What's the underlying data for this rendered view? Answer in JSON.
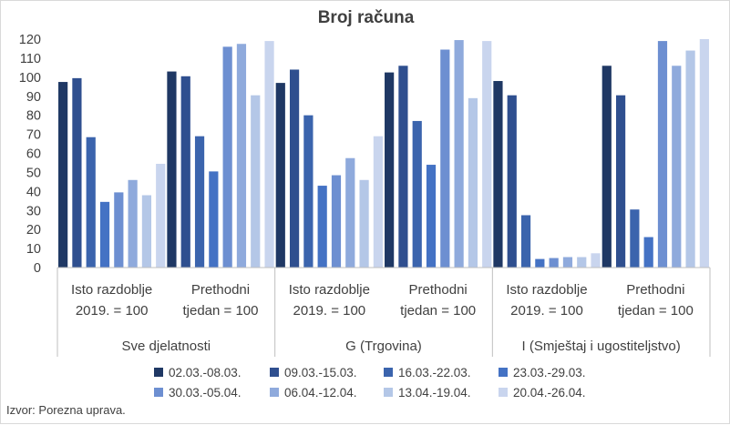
{
  "chart_data": {
    "type": "bar",
    "title": "Broj računa",
    "ylim": [
      0,
      120
    ],
    "yticks": [
      0,
      10,
      20,
      30,
      40,
      50,
      60,
      70,
      80,
      90,
      100,
      110,
      120
    ],
    "grid": false,
    "legend_position": "bottom",
    "groups": [
      {
        "label": "Sve djelatnosti",
        "subgroups": [
          {
            "label_lines": [
              "Isto razdoblje",
              "2019. = 100"
            ],
            "values": [
              97.5,
              99.5,
              68.5,
              34.5,
              39.5,
              46,
              38,
              54.5
            ]
          },
          {
            "label_lines": [
              "Prethodni",
              "tjedan = 100"
            ],
            "values": [
              103,
              100.5,
              69,
              50.5,
              116,
              117.5,
              90.5,
              119
            ]
          }
        ]
      },
      {
        "label": "G (Trgovina)",
        "subgroups": [
          {
            "label_lines": [
              "Isto razdoblje",
              "2019. = 100"
            ],
            "values": [
              97,
              104,
              80,
              43,
              48.5,
              57.5,
              46,
              69
            ]
          },
          {
            "label_lines": [
              "Prethodni",
              "tjedan = 100"
            ],
            "values": [
              102.5,
              106,
              77,
              54,
              114.5,
              119.5,
              89,
              119
            ]
          }
        ]
      },
      {
        "label": "I (Smještaj i ugostiteljstvo)",
        "subgroups": [
          {
            "label_lines": [
              "Isto razdoblje",
              "2019. = 100"
            ],
            "values": [
              98,
              90.5,
              27.5,
              4.5,
              5,
              5.5,
              5.5,
              7.5
            ]
          },
          {
            "label_lines": [
              "Prethodni",
              "tjedan = 100"
            ],
            "values": [
              106,
              90.5,
              30.5,
              16,
              119,
              106,
              114,
              120
            ]
          }
        ]
      }
    ],
    "series": [
      {
        "name": "02.03.-08.03.",
        "color": "#1f3864"
      },
      {
        "name": "09.03.-15.03.",
        "color": "#2f4f8f"
      },
      {
        "name": "16.03.-22.03.",
        "color": "#3b64ad"
      },
      {
        "name": "23.03.-29.03.",
        "color": "#4472c4"
      },
      {
        "name": "30.03.-05.04.",
        "color": "#6d8fd1"
      },
      {
        "name": "06.04.-12.04.",
        "color": "#8faadc"
      },
      {
        "name": "13.04.-19.04.",
        "color": "#b4c7e7"
      },
      {
        "name": "20.04.-26.04.",
        "color": "#c9d5ee"
      }
    ]
  },
  "source_text": "Izvor: Porezna uprava."
}
